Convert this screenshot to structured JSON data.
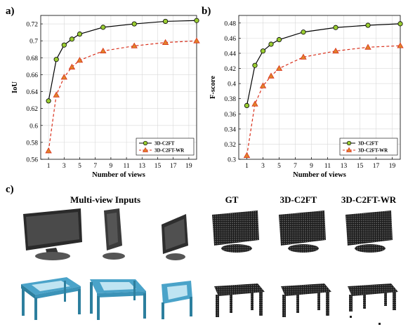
{
  "panels": {
    "a": "a)",
    "b": "b)",
    "c": "c)"
  },
  "colors": {
    "series1_line": "#000000",
    "series1_marker_fill": "#9acd32",
    "series2_line": "#d9301c",
    "series2_marker_fill": "#e0822a",
    "grid": "#d9d9d9"
  },
  "chart_data": [
    {
      "type": "line",
      "title": "",
      "xlabel": "Number of views",
      "ylabel": "IoU",
      "xlim": [
        0,
        20
      ],
      "ylim": [
        0.56,
        0.73
      ],
      "xticks": [
        1,
        3,
        5,
        7,
        9,
        11,
        13,
        15,
        17,
        19
      ],
      "yticks": [
        0.56,
        0.58,
        0.6,
        0.62,
        0.64,
        0.66,
        0.68,
        0.7,
        0.72
      ],
      "grid": true,
      "legend_position": "bottom-right",
      "series": [
        {
          "name": "3D-C2FT",
          "x": [
            1,
            2,
            3,
            4,
            5,
            8,
            12,
            16,
            20
          ],
          "y": [
            0.629,
            0.678,
            0.695,
            0.702,
            0.708,
            0.716,
            0.72,
            0.723,
            0.724
          ]
        },
        {
          "name": "3D-C2FT-WR",
          "x": [
            1,
            2,
            3,
            4,
            5,
            8,
            12,
            16,
            20
          ],
          "y": [
            0.57,
            0.636,
            0.657,
            0.669,
            0.677,
            0.688,
            0.694,
            0.698,
            0.7
          ]
        }
      ]
    },
    {
      "type": "line",
      "title": "",
      "xlabel": "Number of views",
      "ylabel": "F-score",
      "xlim": [
        0,
        20
      ],
      "ylim": [
        0.3,
        0.49
      ],
      "xticks": [
        1,
        3,
        5,
        7,
        9,
        11,
        13,
        15,
        17,
        19
      ],
      "yticks": [
        0.3,
        0.32,
        0.34,
        0.36,
        0.38,
        0.4,
        0.42,
        0.44,
        0.46,
        0.48
      ],
      "grid": true,
      "legend_position": "bottom-right",
      "series": [
        {
          "name": "3D-C2FT",
          "x": [
            1,
            2,
            3,
            4,
            5,
            8,
            12,
            16,
            20
          ],
          "y": [
            0.371,
            0.424,
            0.443,
            0.452,
            0.458,
            0.468,
            0.474,
            0.477,
            0.479
          ]
        },
        {
          "name": "3D-C2FT-WR",
          "x": [
            1,
            2,
            3,
            4,
            5,
            8,
            12,
            16,
            20
          ],
          "y": [
            0.305,
            0.373,
            0.397,
            0.41,
            0.42,
            0.435,
            0.443,
            0.448,
            0.45
          ]
        }
      ]
    }
  ],
  "section_c": {
    "headers": {
      "inputs": "Multi-view Inputs",
      "gt": "GT",
      "c2ft": "3D-C2FT",
      "c2ftwr": "3D-C2FT-WR"
    }
  }
}
